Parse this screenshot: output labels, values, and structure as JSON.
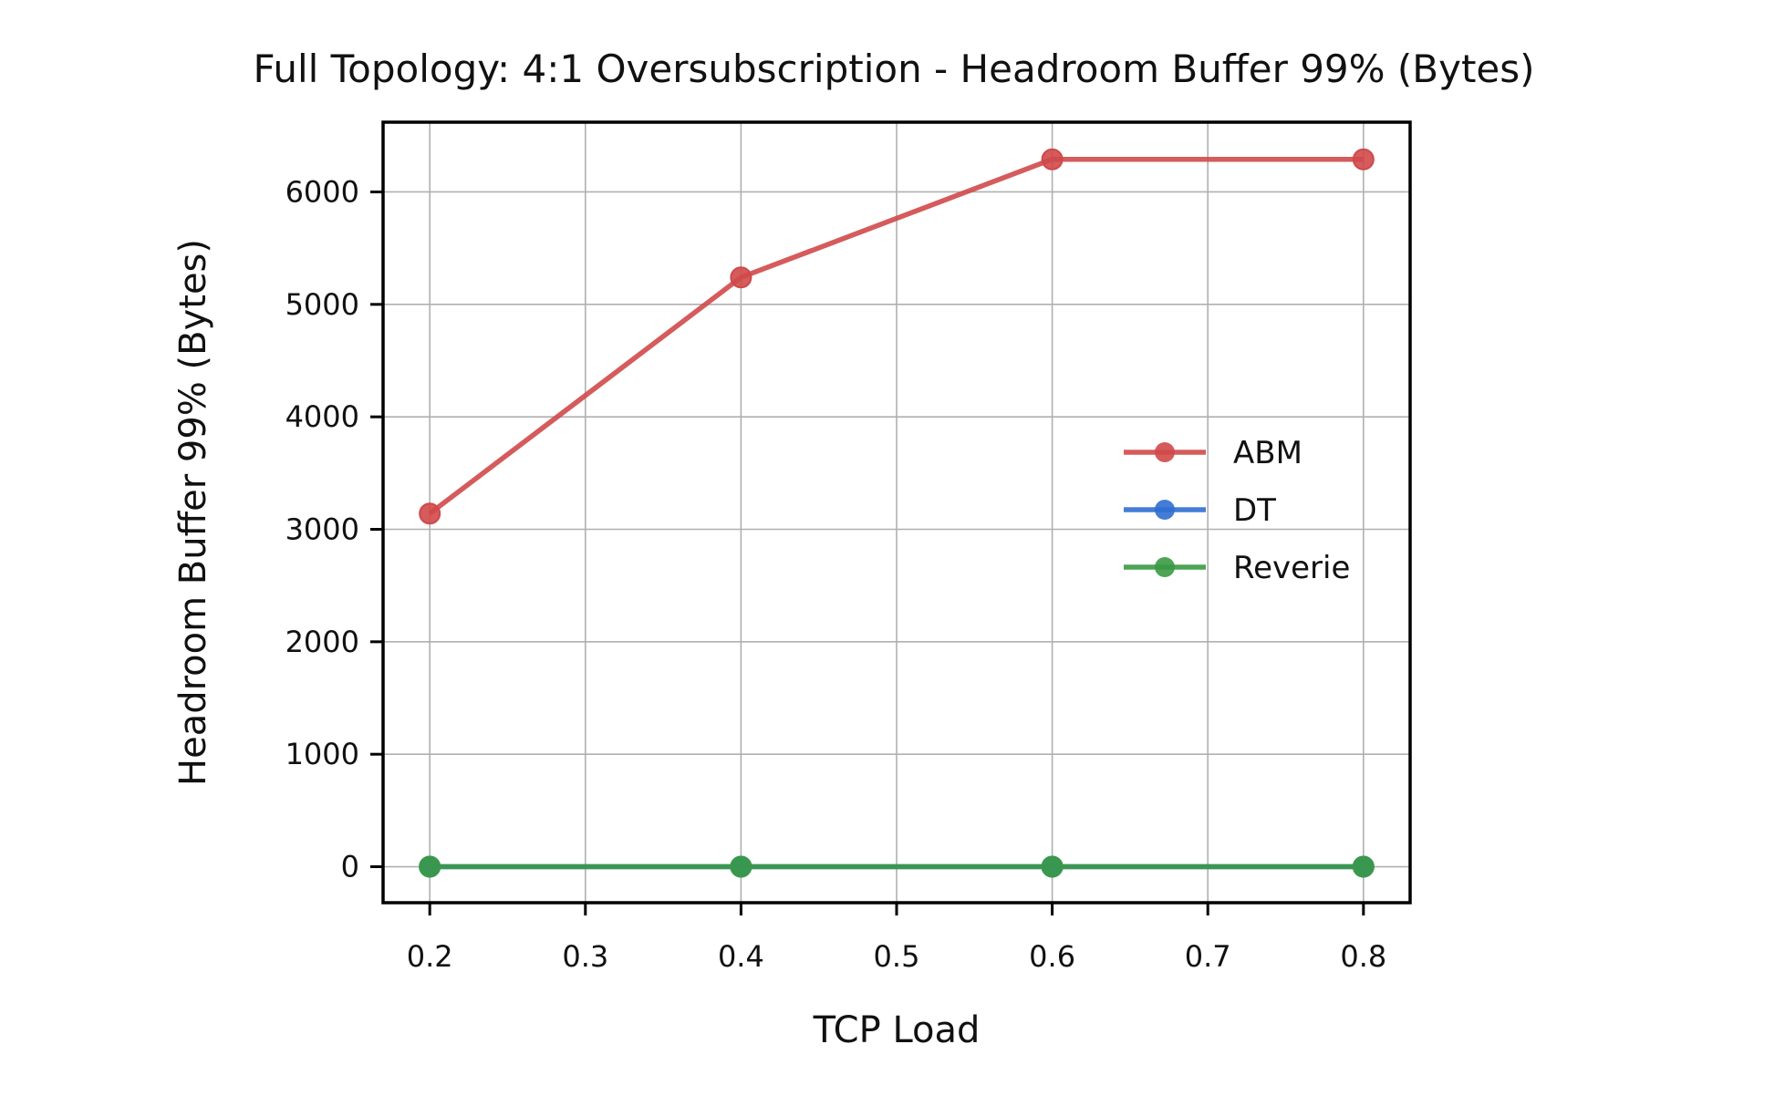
{
  "chart_data": {
    "type": "line",
    "title": "Full Topology: 4:1 Oversubscription - Headroom Buffer 99% (Bytes)",
    "xlabel": "TCP Load",
    "ylabel": "Headroom Buffer 99% (Bytes)",
    "x": [
      0.2,
      0.4,
      0.6,
      0.8
    ],
    "xlim": [
      0.17,
      0.83
    ],
    "ylim": [
      -320,
      6620
    ],
    "xticks": [
      0.2,
      0.3,
      0.4,
      0.5,
      0.6,
      0.7,
      0.8
    ],
    "xtick_labels": [
      "0.2",
      "0.3",
      "0.4",
      "0.5",
      "0.6",
      "0.7",
      "0.8"
    ],
    "yticks": [
      0,
      1000,
      2000,
      3000,
      4000,
      5000,
      6000
    ],
    "ytick_labels": [
      "0",
      "1000",
      "2000",
      "3000",
      "4000",
      "5000",
      "6000"
    ],
    "grid": true,
    "legend_position": "center-right",
    "series": [
      {
        "name": "ABM",
        "color": "#d0494a",
        "values": [
          3140,
          5240,
          6290,
          6290
        ]
      },
      {
        "name": "DT",
        "color": "#2f6fd1",
        "values": [
          0,
          0,
          0,
          0
        ]
      },
      {
        "name": "Reverie",
        "color": "#3a9a44",
        "values": [
          0,
          0,
          0,
          0
        ]
      }
    ]
  }
}
